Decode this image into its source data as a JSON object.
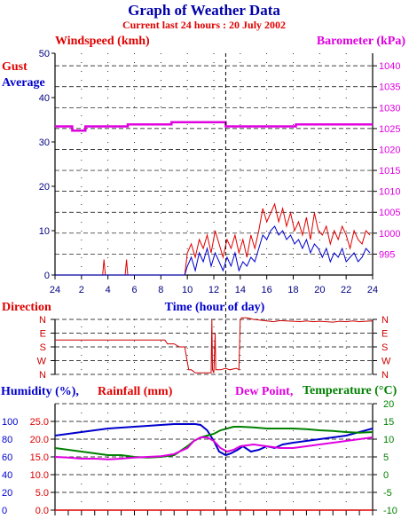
{
  "title": "Graph of Weather Data",
  "subtitle": "Current last 24 hours : 20 July 2002",
  "colors": {
    "gust": "#e00000",
    "average": "#0000cc",
    "barometer": "#e000e0",
    "direction": "#cc0000",
    "humidity": "#0000cc",
    "rainfall": "#e00000",
    "dewpoint": "#e000e0",
    "temperature": "#008000",
    "axis_black": "#000000"
  },
  "chart_data": [
    {
      "type": "line",
      "name_key": "wind",
      "title": "Windspeed (kmh)",
      "secondary_title": "Barometer (kPa)",
      "legend": [
        "Gust",
        "Average"
      ],
      "xlabel": "Time (hour of day)",
      "x_ticks": [
        "24",
        "2",
        "4",
        "6",
        "8",
        "10",
        "12",
        "14",
        "16",
        "18",
        "20",
        "22",
        "24"
      ],
      "y_left_ticks": [
        "0",
        "10",
        "20",
        "30",
        "40",
        "50"
      ],
      "y_right_ticks": [
        "995",
        "1000",
        "1005",
        "1010",
        "1015",
        "1020",
        "1025",
        "1030",
        "1035",
        "1040"
      ],
      "ylim_left": [
        0,
        50
      ],
      "ylim_right": [
        990,
        1043
      ],
      "current_time_hour": 12.9,
      "series": [
        {
          "name": "Gust",
          "axis": "left",
          "color_key": "gust",
          "x": [
            0,
            3.6,
            3.7,
            3.8,
            5.3,
            5.4,
            5.5,
            9.8,
            10,
            10.3,
            10.6,
            10.9,
            11.2,
            11.5,
            11.8,
            12.1,
            12.4,
            12.7,
            13,
            13.3,
            13.6,
            13.9,
            14.2,
            14.5,
            14.8,
            15.1,
            15.4,
            15.7,
            16,
            16.3,
            16.6,
            16.9,
            17.2,
            17.5,
            17.8,
            18.1,
            18.4,
            18.7,
            19,
            19.3,
            19.6,
            19.9,
            20.2,
            20.5,
            20.8,
            21.1,
            21.4,
            21.7,
            22,
            22.3,
            22.6,
            22.9,
            23.2,
            23.5,
            23.8
          ],
          "y": [
            0,
            0,
            3.5,
            0,
            0,
            3.5,
            0,
            0,
            5,
            7,
            4,
            8,
            6,
            9,
            5,
            10,
            7,
            4,
            8,
            6,
            9,
            5,
            8,
            4,
            9,
            6,
            10,
            15,
            12,
            14,
            16,
            12,
            15,
            11,
            14,
            10,
            12,
            9,
            13,
            8,
            14,
            10,
            9,
            11,
            7,
            10,
            8,
            11,
            9,
            6,
            10,
            8,
            7,
            10,
            9
          ]
        },
        {
          "name": "Average",
          "axis": "left",
          "color_key": "average",
          "x": [
            0,
            9.8,
            10,
            10.3,
            10.6,
            10.9,
            11.2,
            11.5,
            11.8,
            12.1,
            12.4,
            12.7,
            13,
            13.3,
            13.6,
            13.9,
            14.2,
            14.5,
            14.8,
            15.1,
            15.4,
            15.7,
            16,
            16.3,
            16.6,
            16.9,
            17.2,
            17.5,
            17.8,
            18.1,
            18.4,
            18.7,
            19,
            19.3,
            19.6,
            19.9,
            20.2,
            20.5,
            20.8,
            21.1,
            21.4,
            21.7,
            22,
            22.3,
            22.6,
            22.9,
            23.2,
            23.5,
            23.8
          ],
          "y": [
            0,
            0,
            2,
            4,
            1,
            5,
            3,
            6,
            2,
            5,
            3,
            1,
            4,
            2,
            5,
            1,
            3,
            2,
            4,
            3,
            6,
            9,
            8,
            10,
            11,
            9,
            10,
            8,
            9,
            7,
            8,
            6,
            8,
            5,
            7,
            6,
            4,
            6,
            3,
            5,
            4,
            6,
            3,
            4,
            5,
            3,
            4,
            6,
            5
          ]
        },
        {
          "name": "Barometer",
          "axis": "right",
          "color_key": "barometer",
          "x": [
            0,
            1.3,
            1.3,
            2.3,
            2.3,
            5.5,
            5.5,
            8.8,
            8.8,
            12.9,
            12.9,
            18.2,
            18.2,
            24
          ],
          "y": [
            1025.5,
            1025.5,
            1024.5,
            1024.5,
            1025.5,
            1025.5,
            1026,
            1026,
            1026.5,
            1026.5,
            1025.5,
            1025.5,
            1026,
            1026
          ]
        }
      ]
    },
    {
      "type": "line",
      "name_key": "direction",
      "title": "Direction",
      "y_ticks": [
        "N",
        "W",
        "S",
        "E",
        "N"
      ],
      "ylim": [
        0,
        360
      ],
      "series": [
        {
          "name": "Direction",
          "color_key": "direction",
          "x": [
            0,
            8.3,
            8.5,
            9,
            9.4,
            9.8,
            10.1,
            10.3,
            10.6,
            11,
            11.4,
            11.8,
            11.85,
            11.9,
            12.0,
            12.1,
            12.15,
            12.2,
            12.5,
            12.9,
            13.2,
            13.7,
            13.9,
            14.0,
            14.05,
            14.1,
            14.5,
            15,
            15.5,
            16,
            16.5,
            17,
            17.5,
            18,
            18.5,
            19,
            19.5,
            20,
            20.5,
            21,
            21.5,
            22,
            22.5,
            23,
            23.5,
            24
          ],
          "y": [
            225,
            225,
            200,
            200,
            180,
            180,
            30,
            30,
            10,
            10,
            10,
            10,
            360,
            30,
            10,
            270,
            30,
            30,
            30,
            40,
            30,
            40,
            30,
            360,
            360,
            370,
            370,
            360,
            355,
            350,
            345,
            352,
            350,
            348,
            345,
            350,
            345,
            348,
            345,
            342,
            348,
            345,
            350,
            345,
            348,
            350
          ]
        }
      ]
    },
    {
      "type": "line",
      "name_key": "climate",
      "titles": [
        "Humidity (%),",
        "Rainfall (mm)",
        "Dew Point,",
        "Temperature (°C)"
      ],
      "y_humidity_ticks": [
        "0",
        "20",
        "40",
        "60",
        "80",
        "100"
      ],
      "y_rainfall_ticks": [
        "0.0",
        "5.0",
        "10.0",
        "15.0",
        "20.0",
        "25.0"
      ],
      "y_temp_ticks": [
        "-10",
        "-5",
        "0",
        "5",
        "10",
        "15",
        "20"
      ],
      "ylim_humidity": [
        0,
        120
      ],
      "ylim_temp": [
        -10,
        20
      ],
      "series": [
        {
          "name": "Humidity",
          "axis": "humidity",
          "color_key": "humidity",
          "x": [
            0,
            1,
            2,
            3,
            4,
            5,
            6,
            7,
            8,
            9,
            10,
            10.6,
            11,
            11.5,
            12,
            12.4,
            12.9,
            13.3,
            13.8,
            14.2,
            14.8,
            15.4,
            16,
            16.6,
            17.2,
            18,
            19,
            20,
            21,
            22,
            23,
            24
          ],
          "y": [
            84,
            86,
            88,
            90,
            92,
            93,
            94,
            95,
            96,
            97,
            97,
            97,
            96,
            90,
            78,
            66,
            62,
            64,
            68,
            72,
            66,
            68,
            72,
            70,
            74,
            76,
            78,
            80,
            82,
            84,
            88,
            92
          ]
        },
        {
          "name": "Temperature",
          "axis": "temp",
          "color_key": "temperature",
          "x": [
            0,
            1,
            2,
            3,
            4,
            5,
            6,
            7,
            8,
            9,
            10,
            10.5,
            11,
            11.5,
            12,
            12.5,
            13,
            13.5,
            14,
            15,
            16,
            17,
            18,
            19,
            20,
            21,
            22,
            23,
            24
          ],
          "y": [
            7.5,
            7,
            6.5,
            6,
            5.5,
            5.5,
            5,
            4.8,
            5,
            5.5,
            8,
            9.5,
            10.5,
            11,
            11.5,
            12.5,
            13,
            13.5,
            13.5,
            13.3,
            13,
            13,
            13,
            12.8,
            12.5,
            12.3,
            12,
            11.8,
            12
          ]
        },
        {
          "name": "Dew Point",
          "axis": "temp",
          "color_key": "dewpoint",
          "x": [
            0,
            1,
            2,
            3,
            4,
            5,
            6,
            7,
            8,
            9,
            10,
            10.5,
            11,
            11.5,
            12,
            12.5,
            13,
            13.5,
            14,
            15,
            16,
            17,
            18,
            19,
            20,
            21,
            22,
            23,
            24
          ],
          "y": [
            5,
            4.8,
            4.5,
            4.5,
            4.3,
            4.5,
            4.8,
            5,
            5.2,
            5.8,
            7.5,
            9.5,
            10.5,
            10.5,
            9.5,
            7.5,
            6.5,
            7,
            8,
            8.5,
            8,
            7.5,
            7.5,
            8,
            8.5,
            9,
            9.5,
            10,
            10.5
          ]
        }
      ]
    }
  ]
}
